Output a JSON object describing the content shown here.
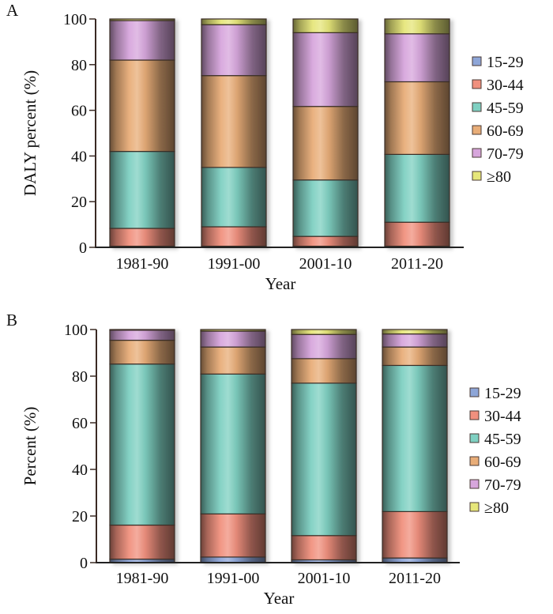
{
  "chart_data": [
    {
      "type": "bar",
      "stacked": true,
      "panel": "A",
      "title": "",
      "xlabel": "Year",
      "ylabel": "DALY percent (%)",
      "ylim": [
        0,
        100
      ],
      "yticks": [
        0,
        20,
        40,
        60,
        80,
        100
      ],
      "grid": false,
      "legend_position": "right",
      "categories": [
        "1981-90",
        "1991-00",
        "2001-10",
        "2011-20"
      ],
      "series": [
        {
          "name": "15-29",
          "color": "#8ea6d8",
          "values": [
            0.5,
            0.5,
            0.5,
            0.5
          ]
        },
        {
          "name": "30-44",
          "color": "#f0907e",
          "values": [
            7.8,
            8.5,
            4.3,
            10.5
          ]
        },
        {
          "name": "45-59",
          "color": "#7fd0c2",
          "values": [
            33.7,
            26.0,
            24.7,
            29.7
          ]
        },
        {
          "name": "60-69",
          "color": "#e8ad78",
          "values": [
            40.0,
            40.2,
            32.2,
            31.8
          ]
        },
        {
          "name": "70-79",
          "color": "#d7a6dc",
          "values": [
            17.3,
            22.3,
            32.3,
            21.0
          ]
        },
        {
          "name": "≥80",
          "color": "#e6e67a",
          "values": [
            0.7,
            2.5,
            6.0,
            6.5
          ]
        }
      ]
    },
    {
      "type": "bar",
      "stacked": true,
      "panel": "B",
      "title": "",
      "xlabel": "Year",
      "ylabel": "Percent (%)",
      "ylim": [
        0,
        100
      ],
      "yticks": [
        0,
        20,
        40,
        60,
        80,
        100
      ],
      "grid": false,
      "legend_position": "right",
      "categories": [
        "1981-90",
        "1991-00",
        "2001-10",
        "2011-20"
      ],
      "series": [
        {
          "name": "15-29",
          "color": "#8ea6d8",
          "values": [
            1.5,
            2.4,
            1.2,
            2.0
          ]
        },
        {
          "name": "30-44",
          "color": "#f0907e",
          "values": [
            14.6,
            18.5,
            10.4,
            19.9
          ]
        },
        {
          "name": "45-59",
          "color": "#7fd0c2",
          "values": [
            69.1,
            60.0,
            65.4,
            62.7
          ]
        },
        {
          "name": "60-69",
          "color": "#e8ad78",
          "values": [
            10.2,
            11.6,
            10.5,
            7.9
          ]
        },
        {
          "name": "70-79",
          "color": "#d7a6dc",
          "values": [
            4.3,
            6.8,
            10.4,
            5.6
          ]
        },
        {
          "name": "≥80",
          "color": "#e6e67a",
          "values": [
            0.3,
            0.7,
            2.1,
            1.9
          ]
        }
      ]
    }
  ]
}
